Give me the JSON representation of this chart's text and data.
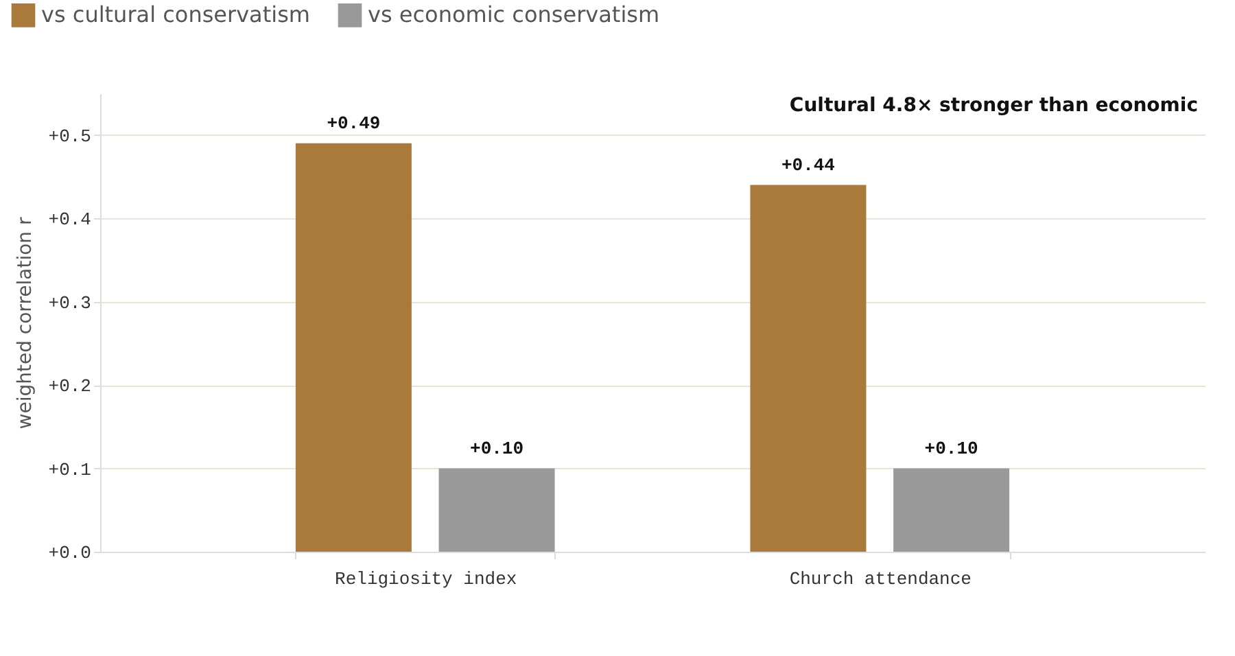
{
  "chart_data": {
    "type": "bar",
    "ylabel": "weighted correlation r",
    "annotations": [
      "Cultural 4.8× stronger than economic"
    ],
    "categories": [
      "Religiosity index",
      "Church attendance"
    ],
    "series": [
      {
        "name": "vs cultural conservatism",
        "color": "#a97a3a",
        "values": [
          0.49,
          0.44
        ],
        "value_labels": [
          "+0.49",
          "+0.44"
        ]
      },
      {
        "name": "vs economic conservatism",
        "color": "#999999",
        "values": [
          0.1,
          0.1
        ],
        "value_labels": [
          "+0.10",
          "+0.10"
        ]
      }
    ],
    "ylim": [
      0,
      0.55
    ],
    "yticks": [
      {
        "value": 0,
        "label": "+0.0"
      },
      {
        "value": 0.1,
        "label": "+0.1"
      },
      {
        "value": 0.2,
        "label": "+0.2"
      },
      {
        "value": 0.3,
        "label": "+0.3"
      },
      {
        "value": 0.4,
        "label": "+0.4"
      },
      {
        "value": 0.5,
        "label": "+0.5"
      }
    ],
    "grid": "y",
    "legend": "top left"
  }
}
